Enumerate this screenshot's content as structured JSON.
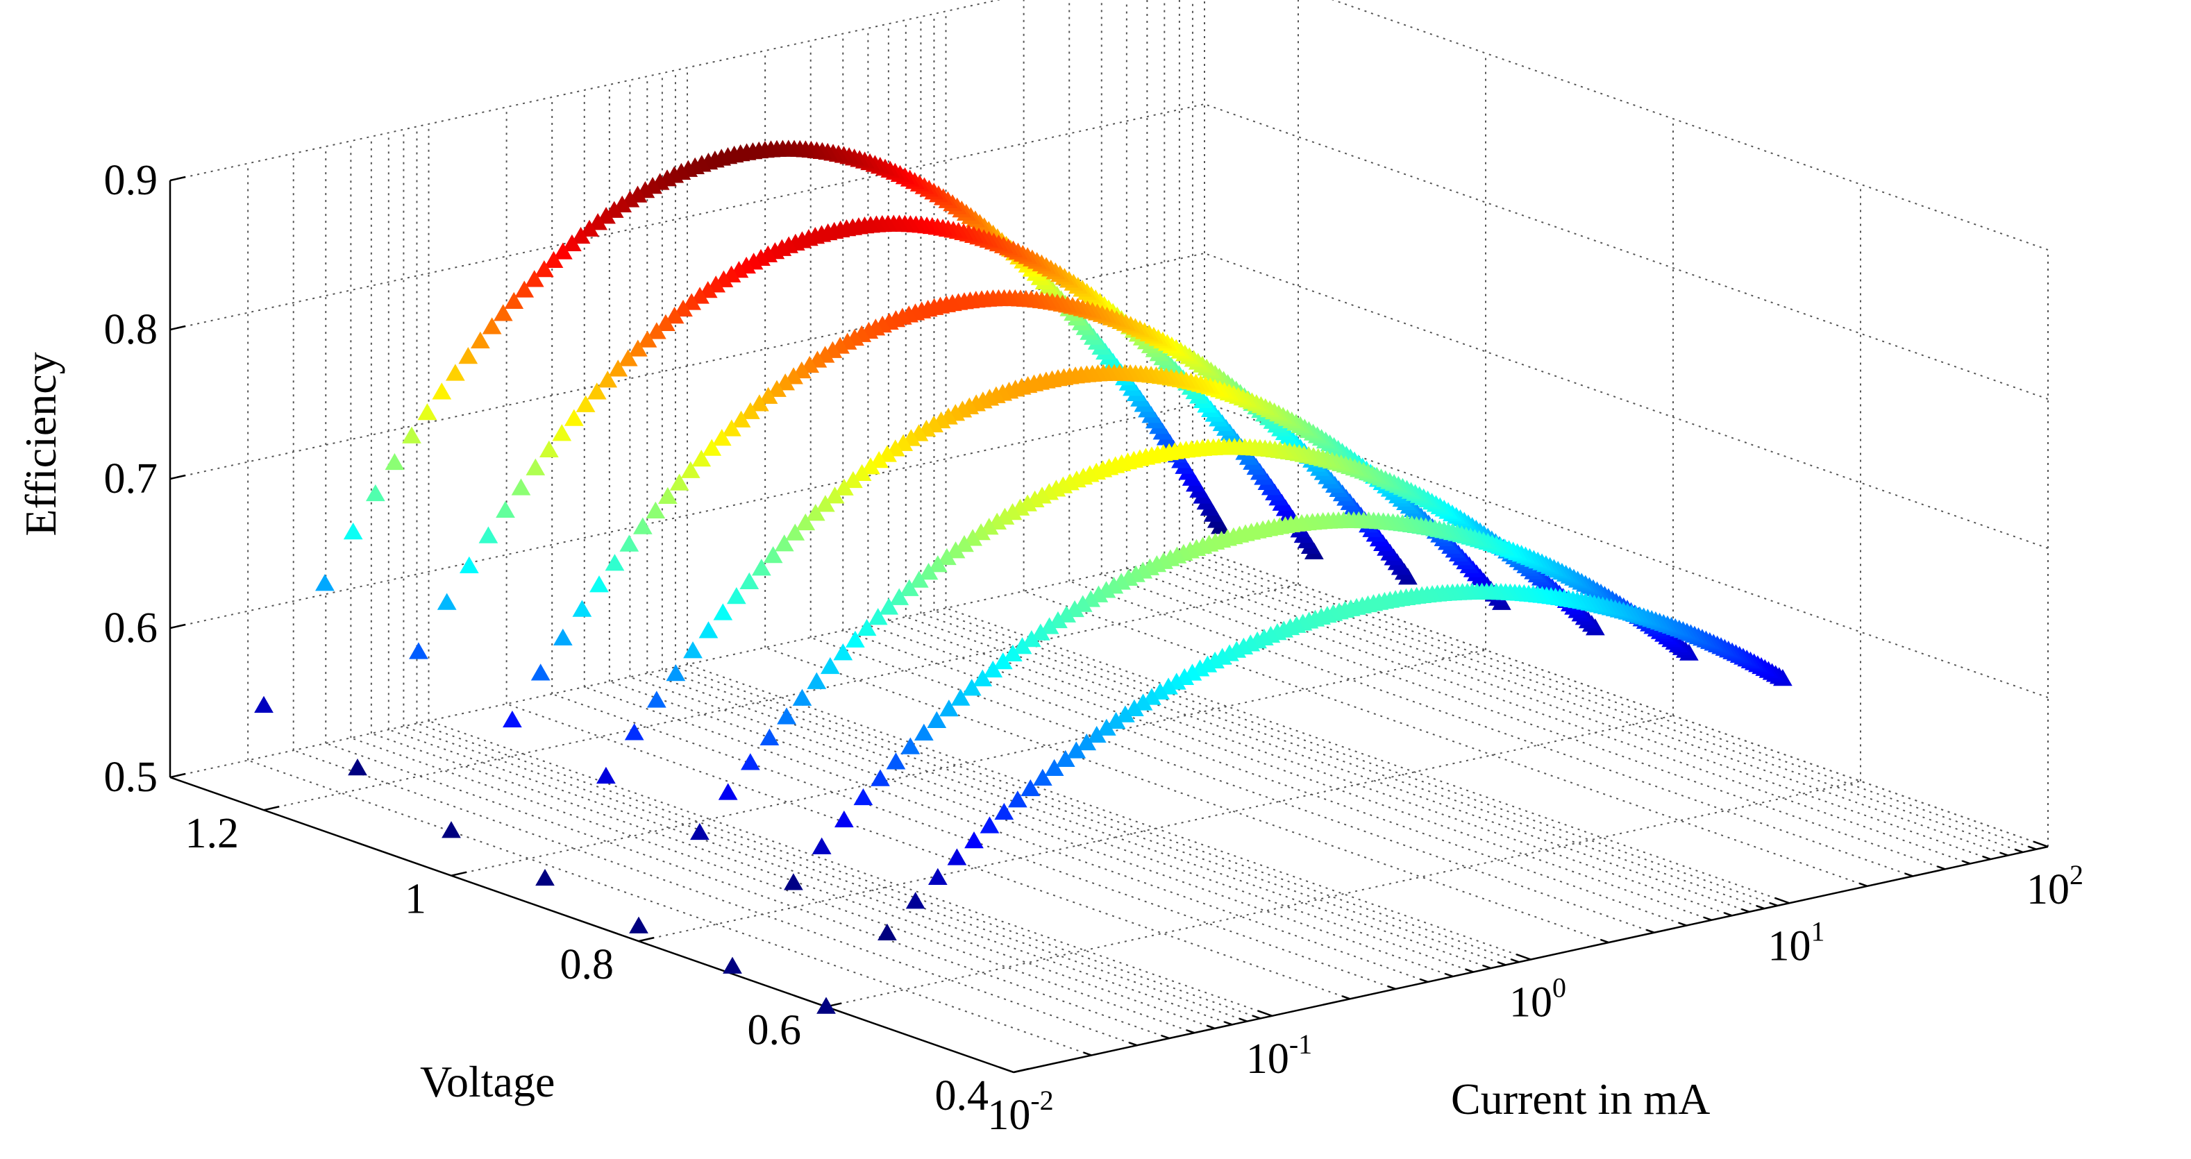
{
  "chart_data": {
    "type": "scatter3d",
    "title": "",
    "xlabel": "Current in mA",
    "ylabel": "Voltage",
    "zlabel": "Efficiency",
    "x_scale": "log",
    "xlim": [
      0.01,
      100
    ],
    "ylim": [
      0.4,
      1.3
    ],
    "zlim": [
      0.5,
      0.9
    ],
    "x_ticks": [
      {
        "base": "10",
        "exp": "-2"
      },
      {
        "base": "10",
        "exp": "-1"
      },
      {
        "base": "10",
        "exp": "0"
      },
      {
        "base": "10",
        "exp": "1"
      },
      {
        "base": "10",
        "exp": "2"
      }
    ],
    "y_ticks": [
      "0.4",
      "0.6",
      "0.8",
      "1",
      "1.2"
    ],
    "z_ticks": [
      "0.5",
      "0.6",
      "0.7",
      "0.8",
      "0.9"
    ],
    "marker": "triangle",
    "colormap": "jet (blue = low efficiency, dark red = high efficiency)",
    "grid": true,
    "series": [
      {
        "voltage": 1.2,
        "peak_efficiency": 0.87,
        "efficiency_at_0.01mA": 0.57,
        "efficiency_at_50mA": 0.55
      },
      {
        "voltage": 1.1,
        "peak_efficiency": 0.84,
        "efficiency_at_0.01mA": 0.55,
        "efficiency_at_50mA": 0.555
      },
      {
        "voltage": 1.0,
        "peak_efficiency": 0.81,
        "efficiency_at_0.01mA": 0.53,
        "efficiency_at_50mA": 0.56
      },
      {
        "voltage": 0.9,
        "peak_efficiency": 0.78,
        "efficiency_at_0.01mA": 0.52,
        "efficiency_at_50mA": 0.565
      },
      {
        "voltage": 0.8,
        "peak_efficiency": 0.75,
        "efficiency_at_0.01mA": 0.51,
        "efficiency_at_50mA": 0.57
      },
      {
        "voltage": 0.7,
        "peak_efficiency": 0.72,
        "efficiency_at_0.01mA": 0.505,
        "efficiency_at_50mA": 0.575
      },
      {
        "voltage": 0.6,
        "peak_efficiency": 0.69,
        "efficiency_at_0.01mA": 0.5,
        "efficiency_at_50mA": 0.58
      }
    ]
  }
}
